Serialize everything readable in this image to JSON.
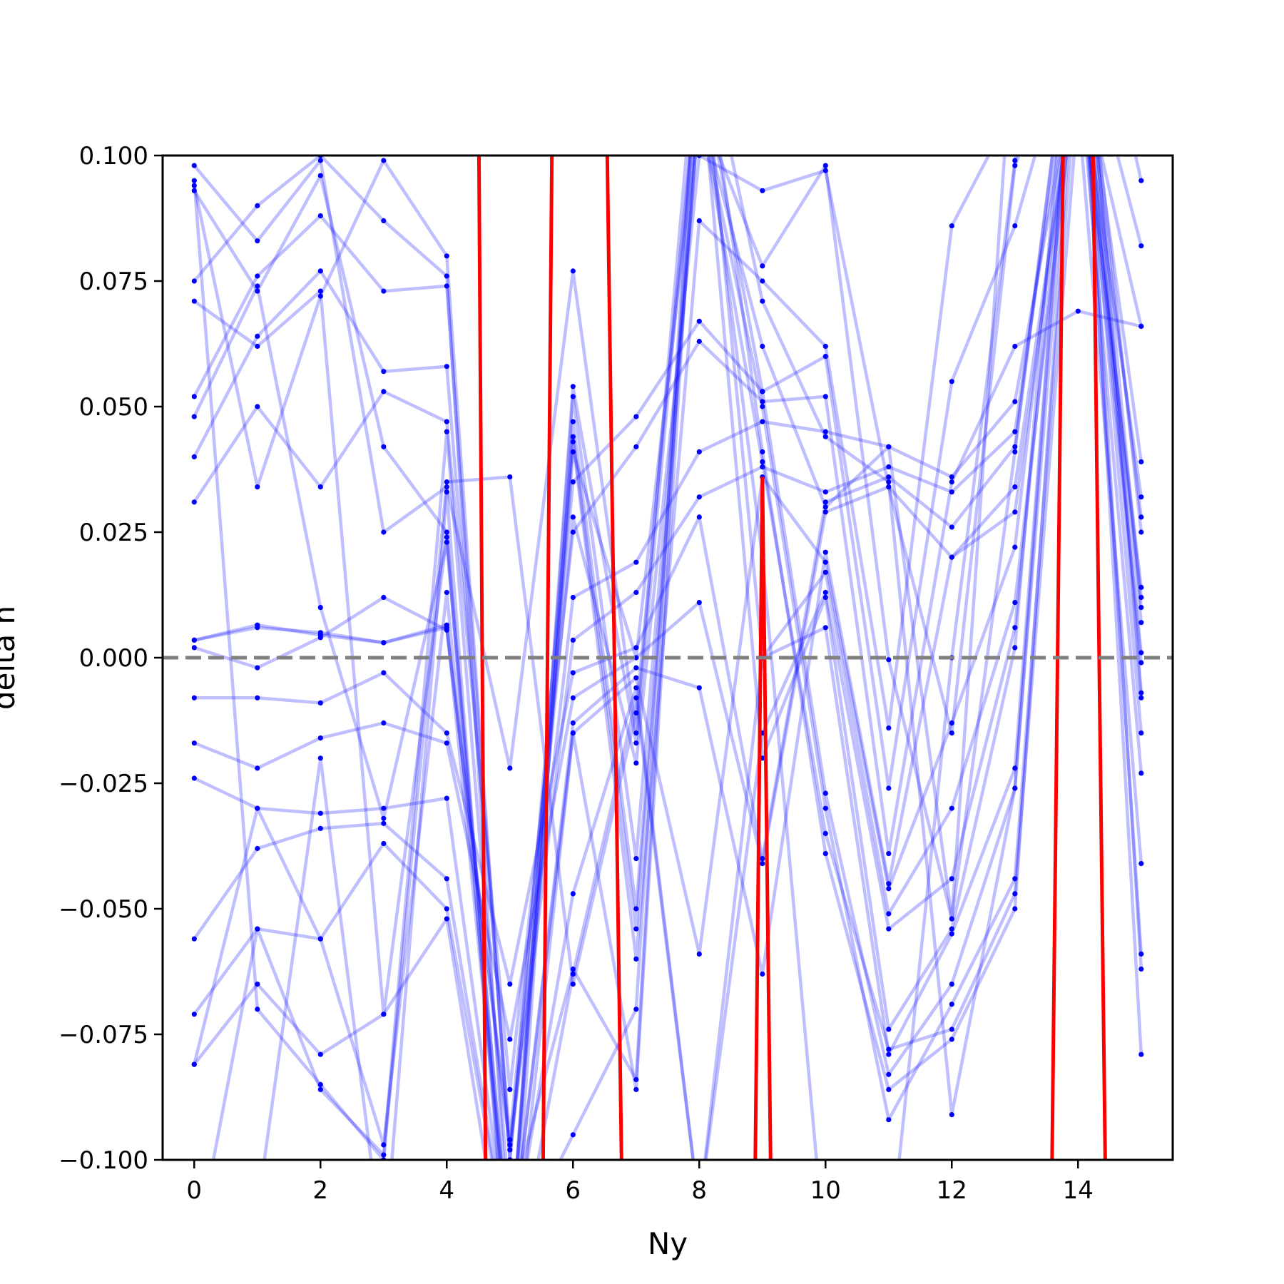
{
  "chart_data": {
    "type": "line",
    "xlabel": "Ny",
    "ylabel": "delta n",
    "xlim": [
      -0.5,
      15.5
    ],
    "ylim": [
      -0.1,
      0.1
    ],
    "xticks": [
      0,
      2,
      4,
      6,
      8,
      10,
      12,
      14
    ],
    "xtick_labels": [
      "0",
      "2",
      "4",
      "6",
      "8",
      "10",
      "12",
      "14"
    ],
    "yticks": [
      -0.1,
      -0.075,
      -0.05,
      -0.025,
      0.0,
      0.025,
      0.05,
      0.075,
      0.1
    ],
    "ytick_labels": [
      "−0.100",
      "−0.075",
      "−0.050",
      "−0.025",
      "0.000",
      "0.025",
      "0.050",
      "0.075",
      "0.100"
    ],
    "reference_line": {
      "y": 0.0,
      "style": "dashed",
      "color": "#808080"
    },
    "colors": {
      "trace": "#0000ff",
      "highlight": "#ff0000"
    },
    "trace_alpha": 0.25,
    "series": [
      {
        "x": [
          0,
          1,
          2,
          3,
          4,
          5,
          6,
          7,
          8,
          9,
          10,
          11,
          12,
          13,
          14,
          15
        ],
        "values": [
          0.094,
          0.034,
          0.072,
          0.099,
          0.08,
          -0.1,
          0.028,
          -0.021,
          0.1,
          0.093,
          0.097,
          0.034,
          -0.015,
          0.098,
          0.13,
          0.082
        ]
      },
      {
        "x": [
          0,
          1,
          2,
          3,
          4,
          5,
          6,
          7,
          8,
          9,
          10,
          11,
          12,
          13,
          14,
          15
        ],
        "values": [
          0.075,
          0.09,
          0.1,
          0.087,
          0.076,
          -0.12,
          0.052,
          -0.04,
          0.11,
          0.078,
          0.098,
          -0.0004,
          -0.052,
          0.13,
          0.15,
          0.095
        ]
      },
      {
        "x": [
          0,
          1,
          2,
          3,
          4,
          5,
          6,
          7,
          8,
          9,
          10,
          11,
          12,
          13,
          14,
          15
        ],
        "values": [
          0.052,
          0.076,
          0.088,
          0.073,
          0.074,
          -0.1,
          0.043,
          -0.06,
          0.087,
          0.075,
          0.062,
          -0.014,
          0.086,
          0.11,
          0.12,
          0.066
        ]
      },
      {
        "x": [
          0,
          1,
          2,
          3,
          4,
          5,
          6,
          7,
          8,
          9,
          10,
          11,
          12,
          13,
          14,
          15
        ],
        "values": [
          0.04,
          0.064,
          0.077,
          0.057,
          0.058,
          -0.096,
          0.035,
          0.048,
          0.067,
          0.053,
          0.06,
          -0.026,
          0.055,
          0.086,
          0.13,
          0.039
        ]
      },
      {
        "x": [
          0,
          1,
          2,
          3,
          4,
          5,
          6,
          7,
          8,
          9,
          10,
          11,
          12,
          13,
          14,
          15
        ],
        "values": [
          0.031,
          0.05,
          0.034,
          0.053,
          0.047,
          -0.086,
          0.025,
          0.042,
          0.063,
          0.051,
          0.052,
          -0.039,
          0.035,
          0.062,
          0.069,
          0.066
        ]
      },
      {
        "x": [
          0,
          1,
          2,
          3,
          4,
          5,
          6,
          7,
          8,
          9,
          10,
          11,
          12,
          13,
          14,
          15
        ],
        "values": [
          0.0035,
          0.006,
          0.005,
          0.003,
          0.006,
          -0.097,
          0.012,
          0.019,
          0.041,
          0.047,
          0.045,
          0.042,
          0.036,
          0.051,
          0.12,
          0.032
        ]
      },
      {
        "x": [
          0,
          1,
          2,
          3,
          4,
          5,
          6,
          7,
          8,
          9,
          10,
          11,
          12,
          13,
          14,
          15
        ],
        "values": [
          0.002,
          -0.002,
          0.004,
          0.012,
          0.0055,
          -0.098,
          0.0035,
          0.013,
          0.032,
          0.038,
          0.033,
          0.038,
          0.033,
          0.045,
          0.13,
          0.028
        ]
      },
      {
        "x": [
          0,
          1,
          2,
          3,
          4,
          5,
          6,
          7,
          8,
          9,
          10,
          11,
          12,
          13,
          14,
          15
        ],
        "values": [
          -0.008,
          -0.008,
          -0.009,
          -0.003,
          -0.015,
          -0.065,
          -0.003,
          0.002,
          0.028,
          -0.04,
          0.031,
          0.036,
          0.026,
          0.042,
          0.14,
          0.025
        ]
      },
      {
        "x": [
          0,
          1,
          2,
          3,
          4,
          5,
          6,
          7,
          8,
          9,
          10,
          11,
          12,
          13,
          14,
          15
        ],
        "values": [
          -0.017,
          -0.022,
          -0.016,
          -0.013,
          -0.017,
          -0.076,
          -0.008,
          0.0,
          0.011,
          -0.041,
          0.029,
          0.034,
          0.02,
          0.034,
          0.12,
          0.014
        ]
      },
      {
        "x": [
          0,
          1,
          2,
          3,
          4,
          5,
          6,
          7,
          8,
          9,
          10,
          11,
          12,
          13,
          14,
          15
        ],
        "values": [
          -0.024,
          -0.03,
          -0.031,
          -0.03,
          -0.028,
          -0.12,
          -0.013,
          -0.002,
          -0.006,
          -0.063,
          0.021,
          -0.045,
          0.02,
          0.029,
          0.12,
          0.012
        ]
      },
      {
        "x": [
          0,
          1,
          2,
          3,
          4,
          5,
          6,
          7,
          8,
          9,
          10,
          11,
          12,
          13,
          14,
          15
        ],
        "values": [
          -0.056,
          -0.038,
          -0.034,
          -0.033,
          -0.044,
          -0.12,
          -0.015,
          -0.004,
          -0.059,
          0.036,
          0.019,
          -0.046,
          -0.013,
          0.022,
          0.13,
          0.007
        ]
      },
      {
        "x": [
          0,
          1,
          2,
          3,
          4,
          5,
          6,
          7,
          8,
          9,
          10,
          11,
          12,
          13,
          14,
          15
        ],
        "values": [
          -0.071,
          -0.054,
          -0.056,
          -0.037,
          -0.05,
          -0.12,
          -0.047,
          -0.006,
          -0.11,
          0.0,
          0.017,
          -0.051,
          -0.03,
          0.011,
          0.12,
          0.001
        ]
      },
      {
        "x": [
          0,
          1,
          2,
          3,
          4,
          5,
          6,
          7,
          8,
          9,
          10,
          11,
          12,
          13,
          14,
          15
        ],
        "values": [
          -0.081,
          -0.065,
          -0.079,
          -0.071,
          -0.052,
          -0.13,
          -0.063,
          -0.008,
          -0.11,
          -0.015,
          0.013,
          -0.054,
          -0.044,
          0.006,
          0.13,
          -0.001
        ]
      },
      {
        "x": [
          0,
          1,
          2,
          3,
          4,
          5,
          6,
          7,
          8,
          9,
          10,
          11,
          12,
          13,
          14,
          15
        ],
        "values": [
          0.095,
          -0.07,
          -0.085,
          -0.1,
          0.035,
          0.036,
          -0.065,
          -0.011,
          0.12,
          -0.02,
          0.012,
          -0.074,
          -0.054,
          0.002,
          0.15,
          -0.007
        ]
      },
      {
        "x": [
          0,
          1,
          2,
          3,
          4,
          5,
          6,
          7,
          8,
          9,
          10,
          11,
          12,
          13,
          14,
          15
        ],
        "values": [
          0.098,
          0.083,
          0.099,
          0.025,
          0.034,
          -0.022,
          0.077,
          -0.015,
          0.13,
          0.0,
          0.006,
          -0.079,
          -0.055,
          -0.022,
          0.14,
          -0.008
        ]
      },
      {
        "x": [
          0,
          1,
          2,
          3,
          4,
          5,
          6,
          7,
          8,
          9,
          10,
          11,
          12,
          13,
          14,
          15
        ],
        "values": [
          0.093,
          0.073,
          0.096,
          0.042,
          0.025,
          -0.12,
          0.054,
          -0.017,
          0.12,
          0.053,
          -0.027,
          -0.083,
          -0.065,
          -0.026,
          0.13,
          -0.015
        ]
      },
      {
        "x": [
          0,
          1,
          2,
          3,
          4,
          5,
          6,
          7,
          8,
          9,
          10,
          11,
          12,
          13,
          14,
          15
        ],
        "values": [
          0.071,
          0.062,
          0.073,
          -0.071,
          0.024,
          -0.13,
          0.047,
          -0.05,
          0.11,
          0.05,
          -0.03,
          -0.092,
          -0.069,
          -0.044,
          0.12,
          -0.023
        ]
      },
      {
        "x": [
          0,
          1,
          2,
          3,
          4,
          5,
          6,
          7,
          8,
          9,
          10,
          11,
          12,
          13,
          14,
          15
        ],
        "values": [
          0.048,
          0.074,
          0.01,
          -0.032,
          0.023,
          -0.12,
          0.044,
          -0.054,
          0.11,
          0.039,
          -0.035,
          -0.078,
          -0.074,
          -0.047,
          0.11,
          -0.041
        ]
      },
      {
        "x": [
          0,
          1,
          2,
          3,
          4,
          5,
          6,
          7,
          8,
          9,
          10,
          11,
          12,
          13,
          14,
          15
        ],
        "values": [
          -0.081,
          -0.03,
          -0.056,
          -0.097,
          0.013,
          -0.12,
          -0.095,
          -0.07,
          0.13,
          0.041,
          -0.039,
          -0.086,
          -0.076,
          -0.05,
          0.13,
          -0.059
        ]
      },
      {
        "x": [
          0,
          1,
          2,
          3,
          4,
          5,
          6,
          7,
          8,
          9,
          10,
          11,
          12,
          13,
          14,
          15
        ],
        "values": [
          0.0035,
          0.0065,
          0.0045,
          0.003,
          0.0065,
          -0.12,
          0.041,
          0.0,
          0.11,
          0.062,
          0.03,
          0.042,
          -0.052,
          0.041,
          0.14,
          -0.062
        ]
      },
      {
        "x": [
          0,
          1,
          2,
          3,
          4,
          5,
          6,
          7,
          8,
          9,
          10,
          11,
          12,
          13,
          14,
          15
        ],
        "values": [
          -0.12,
          -0.054,
          -0.086,
          -0.099,
          0.045,
          -0.11,
          -0.062,
          -0.084,
          0.13,
          0.071,
          0.044,
          0.035,
          -0.091,
          -0.026,
          0.14,
          -0.079
        ]
      },
      {
        "x": [
          0,
          1,
          2,
          3,
          4,
          5,
          6,
          7,
          8,
          9,
          10,
          11,
          12,
          13,
          14,
          15
        ],
        "values": [
          -0.12,
          -0.11,
          -0.02,
          -0.12,
          0.033,
          -0.13,
          -0.015,
          -0.086,
          0.12,
          0.02,
          -0.12,
          -0.12,
          0.0,
          0.099,
          0.14,
          0.01
        ]
      }
    ],
    "highlight_series": {
      "x": [
        4.5,
        4.62,
        5.52,
        5.68,
        6.52,
        6.78,
        8.88,
        9.0,
        9.14,
        13.58,
        13.78,
        14.22,
        14.44
      ],
      "values": [
        0.12,
        -0.11,
        -0.11,
        0.12,
        0.12,
        -0.11,
        -0.11,
        0.036,
        -0.11,
        -0.11,
        0.12,
        0.12,
        -0.11
      ]
    }
  }
}
